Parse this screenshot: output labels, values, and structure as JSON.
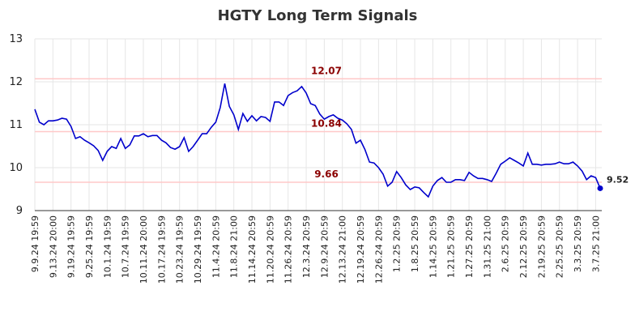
{
  "chart_data": {
    "type": "line",
    "title": "HGTY Long Term Signals",
    "categories": [
      "9.9.24 19:59",
      null,
      null,
      null,
      "9.13.24 20:00",
      null,
      null,
      null,
      "9.19.24 19:59",
      null,
      null,
      null,
      "9.25.24 19:59",
      null,
      null,
      null,
      "10.1.24 19:59",
      null,
      null,
      null,
      "10.7.24 19:59",
      null,
      null,
      null,
      "10.11.24 20:00",
      null,
      null,
      null,
      "10.17.24 19:59",
      null,
      null,
      null,
      "10.23.24 19:59",
      null,
      null,
      null,
      "10.29.24 19:59",
      null,
      null,
      null,
      "11.4.24 20:59",
      null,
      null,
      null,
      "11.8.24 21:00",
      null,
      null,
      null,
      "11.14.24 20:59",
      null,
      null,
      null,
      "11.20.24 20:59",
      null,
      null,
      null,
      "11.26.24 20:59",
      null,
      null,
      null,
      "12.3.24 20:59",
      null,
      null,
      null,
      "12.9.24 20:59",
      null,
      null,
      null,
      "12.13.24 21:00",
      null,
      null,
      null,
      "12.19.24 20:59",
      null,
      null,
      null,
      "12.26.24 20:59",
      null,
      null,
      null,
      "1.2.25 20:59",
      null,
      null,
      null,
      "1.8.25 20:59",
      null,
      null,
      null,
      "1.14.25 20:59",
      null,
      null,
      null,
      "1.21.25 20:59",
      null,
      null,
      null,
      "1.27.25 20:59",
      null,
      null,
      null,
      "1.31.25 21:00",
      null,
      null,
      null,
      "2.6.25 20:59",
      null,
      null,
      null,
      "2.12.25 20:59",
      null,
      null,
      null,
      "2.19.25 20:59",
      null,
      null,
      null,
      "2.25.25 20:59",
      null,
      null,
      null,
      "3.3.25 20:59",
      null,
      null,
      null,
      "3.7.25 21:00",
      null
    ],
    "series": [
      {
        "color": "#0000cc",
        "values": [
          11.36,
          11.06,
          11.0,
          11.09,
          11.09,
          11.11,
          11.15,
          11.13,
          10.96,
          10.68,
          10.72,
          10.64,
          10.58,
          10.51,
          10.4,
          10.17,
          10.38,
          10.49,
          10.45,
          10.68,
          10.45,
          10.53,
          10.74,
          10.74,
          10.79,
          10.72,
          10.75,
          10.75,
          10.64,
          10.58,
          10.47,
          10.43,
          10.49,
          10.7,
          10.38,
          10.49,
          10.64,
          10.79,
          10.79,
          10.94,
          11.06,
          11.4,
          11.96,
          11.43,
          11.23,
          10.89,
          11.26,
          11.08,
          11.21,
          11.09,
          11.19,
          11.17,
          11.08,
          11.53,
          11.53,
          11.45,
          11.68,
          11.75,
          11.79,
          11.89,
          11.74,
          11.49,
          11.45,
          11.25,
          11.13,
          11.19,
          11.23,
          11.15,
          11.11,
          11.02,
          10.89,
          10.57,
          10.64,
          10.42,
          10.13,
          10.11,
          10.0,
          9.85,
          9.57,
          9.66,
          9.91,
          9.77,
          9.6,
          9.49,
          9.55,
          9.53,
          9.42,
          9.32,
          9.57,
          9.7,
          9.77,
          9.66,
          9.66,
          9.72,
          9.72,
          9.7,
          9.89,
          9.81,
          9.75,
          9.75,
          9.72,
          9.68,
          9.87,
          10.08,
          10.15,
          10.23,
          10.17,
          10.11,
          10.04,
          10.34,
          10.08,
          10.08,
          10.06,
          10.08,
          10.08,
          10.09,
          10.13,
          10.09,
          10.09,
          10.13,
          10.04,
          9.92,
          9.72,
          9.81,
          9.77,
          9.52
        ]
      }
    ],
    "signals": [
      12.07,
      10.84,
      9.66
    ],
    "signal_color": "#ffc8c8",
    "signal_label_color": "#8b0000",
    "ylim": [
      9,
      13
    ],
    "yticks": [
      9,
      10,
      11,
      12,
      13
    ],
    "grid": true
  }
}
